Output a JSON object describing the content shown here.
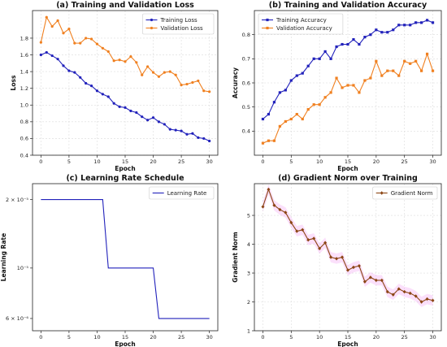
{
  "chart_data": [
    {
      "type": "line",
      "title": "(a) Training and Validation Loss",
      "xlabel": "Epoch",
      "ylabel": "Loss",
      "xlim": [
        -1.5,
        31.5
      ],
      "ylim": [
        0.4,
        2.13
      ],
      "xticks": [
        0,
        5,
        10,
        15,
        20,
        25,
        30
      ],
      "xtick_labels": [
        "0",
        "5",
        "10",
        "15",
        "20",
        "25",
        "30"
      ],
      "yticks": [
        0.4,
        0.6,
        0.8,
        1.0,
        1.2,
        1.4,
        1.6,
        1.8
      ],
      "ytick_labels": [
        "0.4",
        "0.6",
        "0.8",
        "1.0",
        "1.2",
        "1.4",
        "1.6",
        "1.8"
      ],
      "grid": true,
      "legend": "top-right",
      "x": [
        0,
        1,
        2,
        3,
        4,
        5,
        6,
        7,
        8,
        9,
        10,
        11,
        12,
        13,
        14,
        15,
        16,
        17,
        18,
        19,
        20,
        21,
        22,
        23,
        24,
        25,
        26,
        27,
        28,
        29,
        30
      ],
      "series": [
        {
          "name": "Training Loss",
          "color": "#2222bb",
          "marker": "circle",
          "values": [
            1.6,
            1.63,
            1.59,
            1.55,
            1.47,
            1.41,
            1.39,
            1.33,
            1.26,
            1.23,
            1.17,
            1.13,
            1.1,
            1.02,
            0.98,
            0.97,
            0.93,
            0.91,
            0.86,
            0.82,
            0.85,
            0.8,
            0.77,
            0.71,
            0.7,
            0.69,
            0.65,
            0.66,
            0.61,
            0.6,
            0.57
          ]
        },
        {
          "name": "Validation Loss",
          "color": "#f08020",
          "marker": "circle",
          "values": [
            1.75,
            2.05,
            1.94,
            2.01,
            1.86,
            1.91,
            1.74,
            1.74,
            1.8,
            1.79,
            1.73,
            1.68,
            1.64,
            1.53,
            1.54,
            1.52,
            1.58,
            1.51,
            1.36,
            1.46,
            1.39,
            1.34,
            1.39,
            1.4,
            1.36,
            1.24,
            1.25,
            1.27,
            1.29,
            1.17,
            1.16
          ]
        }
      ]
    },
    {
      "type": "line",
      "title": "(b) Training and Validation Accuracy",
      "xlabel": "Epoch",
      "ylabel": "Accuracy",
      "xlim": [
        -1.5,
        31.5
      ],
      "ylim": [
        0.3,
        0.9
      ],
      "xticks": [
        0,
        5,
        10,
        15,
        20,
        25,
        30
      ],
      "xtick_labels": [
        "0",
        "5",
        "10",
        "15",
        "20",
        "25",
        "30"
      ],
      "yticks": [
        0.4,
        0.5,
        0.6,
        0.7,
        0.8
      ],
      "ytick_labels": [
        "0.4",
        "0.5",
        "0.6",
        "0.7",
        "0.8"
      ],
      "grid": true,
      "legend": "top-left",
      "x": [
        0,
        1,
        2,
        3,
        4,
        5,
        6,
        7,
        8,
        9,
        10,
        11,
        12,
        13,
        14,
        15,
        16,
        17,
        18,
        19,
        20,
        21,
        22,
        23,
        24,
        25,
        26,
        27,
        28,
        29,
        30
      ],
      "series": [
        {
          "name": "Training Accuracy",
          "color": "#2222bb",
          "marker": "square",
          "values": [
            0.45,
            0.47,
            0.52,
            0.56,
            0.57,
            0.61,
            0.63,
            0.64,
            0.67,
            0.7,
            0.7,
            0.73,
            0.7,
            0.75,
            0.76,
            0.76,
            0.78,
            0.76,
            0.79,
            0.8,
            0.82,
            0.81,
            0.81,
            0.82,
            0.84,
            0.84,
            0.84,
            0.85,
            0.85,
            0.86,
            0.85
          ]
        },
        {
          "name": "Validation Accuracy",
          "color": "#f08020",
          "marker": "square",
          "values": [
            0.35,
            0.36,
            0.36,
            0.42,
            0.44,
            0.45,
            0.47,
            0.45,
            0.49,
            0.51,
            0.51,
            0.54,
            0.56,
            0.62,
            0.58,
            0.59,
            0.59,
            0.56,
            0.61,
            0.62,
            0.69,
            0.63,
            0.65,
            0.65,
            0.63,
            0.69,
            0.68,
            0.69,
            0.65,
            0.72,
            0.65
          ]
        }
      ]
    },
    {
      "type": "line",
      "title": "(c) Learning Rate Schedule",
      "xlabel": "Epoch",
      "ylabel": "Learning Rate",
      "xlim": [
        -1.5,
        31.5
      ],
      "yscale": "log",
      "ylim": [
        5.3e-06,
        2.35e-05
      ],
      "xticks": [
        0,
        5,
        10,
        15,
        20,
        25,
        30
      ],
      "xtick_labels": [
        "0",
        "5",
        "10",
        "15",
        "20",
        "25",
        "30"
      ],
      "yticks": [
        2e-05,
        1e-05,
        6e-06
      ],
      "ytick_labels": [
        "2 × 10⁻⁵",
        "10⁻⁵",
        "6 × 10⁻⁶"
      ],
      "grid": false,
      "legend": "top-right",
      "x": [
        0,
        1,
        2,
        3,
        4,
        5,
        6,
        7,
        8,
        9,
        10,
        11,
        12,
        13,
        14,
        15,
        16,
        17,
        18,
        19,
        20,
        21,
        22,
        23,
        24,
        25,
        26,
        27,
        28,
        29,
        30
      ],
      "series": [
        {
          "name": "Learning Rate",
          "color": "#2222bb",
          "marker": "none",
          "values": [
            2e-05,
            2e-05,
            2e-05,
            2e-05,
            2e-05,
            2e-05,
            2e-05,
            2e-05,
            2e-05,
            2e-05,
            2e-05,
            2e-05,
            1e-05,
            1e-05,
            1e-05,
            1e-05,
            1e-05,
            1e-05,
            1e-05,
            1e-05,
            1e-05,
            6e-06,
            6e-06,
            6e-06,
            6e-06,
            6e-06,
            6e-06,
            6e-06,
            6e-06,
            6e-06,
            6e-06
          ]
        }
      ]
    },
    {
      "type": "line",
      "title": "(d) Gradient Norm over Training",
      "xlabel": "Epoch",
      "ylabel": "Gradient Norm",
      "xlim": [
        -1.5,
        31.5
      ],
      "ylim": [
        1.0,
        6.1
      ],
      "xticks": [
        0,
        5,
        10,
        15,
        20,
        25,
        30
      ],
      "xtick_labels": [
        "0",
        "5",
        "10",
        "15",
        "20",
        "25",
        "30"
      ],
      "yticks": [
        1,
        2,
        3,
        4,
        5
      ],
      "ytick_labels": [
        "1",
        "2",
        "3",
        "4",
        "5"
      ],
      "grid": true,
      "legend": "top-right",
      "x": [
        0,
        1,
        2,
        3,
        4,
        5,
        6,
        7,
        8,
        9,
        10,
        11,
        12,
        13,
        14,
        15,
        16,
        17,
        18,
        19,
        20,
        21,
        22,
        23,
        24,
        25,
        26,
        27,
        28,
        29,
        30
      ],
      "series": [
        {
          "name": "Gradient Norm",
          "color": "#8b4513",
          "marker": "diamond",
          "band_color": "#ee82ee",
          "values": [
            5.3,
            5.9,
            5.35,
            5.2,
            5.1,
            4.75,
            4.45,
            4.5,
            4.15,
            4.2,
            3.85,
            4.05,
            3.55,
            3.5,
            3.55,
            3.1,
            3.2,
            3.25,
            2.7,
            2.85,
            2.75,
            2.75,
            2.35,
            2.25,
            2.45,
            2.35,
            2.3,
            2.2,
            2.0,
            2.1,
            2.05
          ]
        }
      ]
    }
  ]
}
